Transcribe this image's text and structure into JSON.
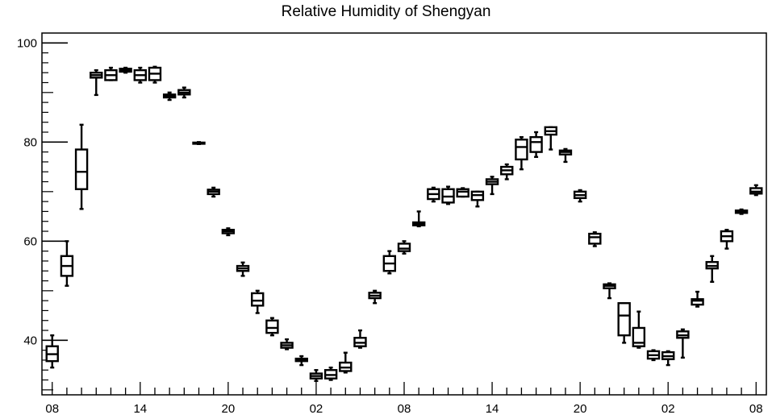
{
  "chart_data": {
    "type": "boxplot",
    "title": "Relative Humidity of Shengyan",
    "xlabel": "",
    "ylabel": "",
    "ylim": [
      29,
      102
    ],
    "y_ticks": [
      40,
      60,
      80,
      100
    ],
    "x_tick_labels": [
      "08",
      "14",
      "20",
      "02",
      "08",
      "14",
      "20",
      "02",
      "08"
    ],
    "x_tick_hours": [
      0,
      6,
      12,
      18,
      24,
      30,
      36,
      42,
      48
    ],
    "grid": false,
    "boxes": [
      {
        "hour": 0,
        "whisker_low": 34.5,
        "q1": 35.8,
        "median": 37.2,
        "q3": 38.8,
        "whisker_high": 41.0
      },
      {
        "hour": 1,
        "whisker_low": 51.0,
        "q1": 53.0,
        "median": 55.0,
        "q3": 57.0,
        "whisker_high": 60.0
      },
      {
        "hour": 2,
        "whisker_low": 66.5,
        "q1": 70.5,
        "median": 74.0,
        "q3": 78.5,
        "whisker_high": 83.5
      },
      {
        "hour": 3,
        "whisker_low": 89.5,
        "q1": 93.0,
        "median": 93.5,
        "q3": 94.0,
        "whisker_high": 94.5
      },
      {
        "hour": 4,
        "whisker_low": 92.5,
        "q1": 92.5,
        "median": 93.5,
        "q3": 94.5,
        "whisker_high": 95.0
      },
      {
        "hour": 5,
        "whisker_low": 94.0,
        "q1": 94.2,
        "median": 94.5,
        "q3": 94.8,
        "whisker_high": 95.0
      },
      {
        "hour": 6,
        "whisker_low": 92.0,
        "q1": 92.5,
        "median": 93.5,
        "q3": 94.5,
        "whisker_high": 95.0
      },
      {
        "hour": 7,
        "whisker_low": 92.0,
        "q1": 92.5,
        "median": 93.8,
        "q3": 95.0,
        "whisker_high": 95.2
      },
      {
        "hour": 8,
        "whisker_low": 88.5,
        "q1": 89.0,
        "median": 89.3,
        "q3": 89.6,
        "whisker_high": 90.0
      },
      {
        "hour": 9,
        "whisker_low": 89.0,
        "q1": 89.6,
        "median": 90.0,
        "q3": 90.5,
        "whisker_high": 91.0
      },
      {
        "hour": 10,
        "whisker_low": 79.6,
        "q1": 79.7,
        "median": 79.8,
        "q3": 79.9,
        "whisker_high": 80.0
      },
      {
        "hour": 11,
        "whisker_low": 69.0,
        "q1": 69.5,
        "median": 70.0,
        "q3": 70.4,
        "whisker_high": 70.8
      },
      {
        "hour": 12,
        "whisker_low": 61.2,
        "q1": 61.6,
        "median": 62.0,
        "q3": 62.3,
        "whisker_high": 62.6
      },
      {
        "hour": 13,
        "whisker_low": 53.0,
        "q1": 54.0,
        "median": 54.5,
        "q3": 55.0,
        "whisker_high": 55.7
      },
      {
        "hour": 14,
        "whisker_low": 45.5,
        "q1": 47.0,
        "median": 48.0,
        "q3": 49.5,
        "whisker_high": 50.0
      },
      {
        "hour": 15,
        "whisker_low": 41.0,
        "q1": 41.5,
        "median": 42.5,
        "q3": 44.0,
        "whisker_high": 44.5
      },
      {
        "hour": 16,
        "whisker_low": 38.2,
        "q1": 38.5,
        "median": 39.0,
        "q3": 39.5,
        "whisker_high": 40.2
      },
      {
        "hour": 17,
        "whisker_low": 35.0,
        "q1": 35.8,
        "median": 36.0,
        "q3": 36.3,
        "whisker_high": 36.8
      },
      {
        "hour": 18,
        "whisker_low": 31.8,
        "q1": 32.3,
        "median": 32.8,
        "q3": 33.3,
        "whisker_high": 34.0
      },
      {
        "hour": 19,
        "whisker_low": 32.0,
        "q1": 32.3,
        "median": 33.0,
        "q3": 34.0,
        "whisker_high": 34.5
      },
      {
        "hour": 20,
        "whisker_low": 33.5,
        "q1": 33.8,
        "median": 34.5,
        "q3": 35.5,
        "whisker_high": 37.5
      },
      {
        "hour": 21,
        "whisker_low": 38.5,
        "q1": 38.8,
        "median": 39.5,
        "q3": 40.5,
        "whisker_high": 42.0
      },
      {
        "hour": 22,
        "whisker_low": 47.5,
        "q1": 48.5,
        "median": 49.0,
        "q3": 49.6,
        "whisker_high": 50.0
      },
      {
        "hour": 23,
        "whisker_low": 53.5,
        "q1": 54.0,
        "median": 55.5,
        "q3": 57.0,
        "whisker_high": 58.0
      },
      {
        "hour": 24,
        "whisker_low": 57.5,
        "q1": 58.0,
        "median": 58.5,
        "q3": 59.5,
        "whisker_high": 60.0
      },
      {
        "hour": 25,
        "whisker_low": 63.0,
        "q1": 63.2,
        "median": 63.5,
        "q3": 63.8,
        "whisker_high": 66.0
      },
      {
        "hour": 26,
        "whisker_low": 68.0,
        "q1": 68.5,
        "median": 69.5,
        "q3": 70.5,
        "whisker_high": 70.8
      },
      {
        "hour": 27,
        "whisker_low": 67.5,
        "q1": 67.8,
        "median": 69.0,
        "q3": 70.5,
        "whisker_high": 71.0
      },
      {
        "hour": 28,
        "whisker_low": 69.0,
        "q1": 69.0,
        "median": 70.0,
        "q3": 70.5,
        "whisker_high": 70.7
      },
      {
        "hour": 29,
        "whisker_low": 67.0,
        "q1": 68.3,
        "median": 69.3,
        "q3": 70.0,
        "whisker_high": 70.0
      },
      {
        "hour": 30,
        "whisker_low": 69.5,
        "q1": 71.5,
        "median": 72.0,
        "q3": 72.5,
        "whisker_high": 73.0
      },
      {
        "hour": 31,
        "whisker_low": 72.5,
        "q1": 73.5,
        "median": 74.3,
        "q3": 75.0,
        "whisker_high": 75.5
      },
      {
        "hour": 32,
        "whisker_low": 74.5,
        "q1": 76.5,
        "median": 79.0,
        "q3": 80.5,
        "whisker_high": 81.0
      },
      {
        "hour": 33,
        "whisker_low": 77.0,
        "q1": 78.0,
        "median": 80.0,
        "q3": 81.0,
        "whisker_high": 82.0
      },
      {
        "hour": 34,
        "whisker_low": 78.5,
        "q1": 81.5,
        "median": 82.2,
        "q3": 83.0,
        "whisker_high": 83.0
      },
      {
        "hour": 35,
        "whisker_low": 76.0,
        "q1": 77.5,
        "median": 78.0,
        "q3": 78.3,
        "whisker_high": 78.6
      },
      {
        "hour": 36,
        "whisker_low": 68.0,
        "q1": 68.7,
        "median": 69.3,
        "q3": 70.0,
        "whisker_high": 70.3
      },
      {
        "hour": 37,
        "whisker_low": 59.0,
        "q1": 59.5,
        "median": 60.8,
        "q3": 61.5,
        "whisker_high": 61.8
      },
      {
        "hour": 38,
        "whisker_low": 48.5,
        "q1": 50.5,
        "median": 51.0,
        "q3": 51.3,
        "whisker_high": 51.5
      },
      {
        "hour": 39,
        "whisker_low": 39.5,
        "q1": 41.0,
        "median": 45.0,
        "q3": 47.5,
        "whisker_high": 47.5
      },
      {
        "hour": 40,
        "whisker_low": 38.5,
        "q1": 38.8,
        "median": 39.5,
        "q3": 42.5,
        "whisker_high": 45.8
      },
      {
        "hour": 41,
        "whisker_low": 36.0,
        "q1": 36.3,
        "median": 37.0,
        "q3": 37.8,
        "whisker_high": 38.0
      },
      {
        "hour": 42,
        "whisker_low": 35.0,
        "q1": 36.2,
        "median": 36.8,
        "q3": 37.6,
        "whisker_high": 37.8
      },
      {
        "hour": 43,
        "whisker_low": 36.5,
        "q1": 40.5,
        "median": 41.0,
        "q3": 41.8,
        "whisker_high": 42.2
      },
      {
        "hour": 44,
        "whisker_low": 46.8,
        "q1": 47.2,
        "median": 48.0,
        "q3": 48.3,
        "whisker_high": 49.8
      },
      {
        "hour": 45,
        "whisker_low": 51.8,
        "q1": 54.5,
        "median": 55.0,
        "q3": 55.8,
        "whisker_high": 57.0
      },
      {
        "hour": 46,
        "whisker_low": 58.5,
        "q1": 60.0,
        "median": 61.0,
        "q3": 62.0,
        "whisker_high": 62.3
      },
      {
        "hour": 47,
        "whisker_low": 65.5,
        "q1": 65.7,
        "median": 66.0,
        "q3": 66.2,
        "whisker_high": 66.4
      },
      {
        "hour": 48,
        "whisker_low": 69.3,
        "q1": 69.6,
        "median": 70.0,
        "q3": 70.7,
        "whisker_high": 71.3
      }
    ]
  }
}
